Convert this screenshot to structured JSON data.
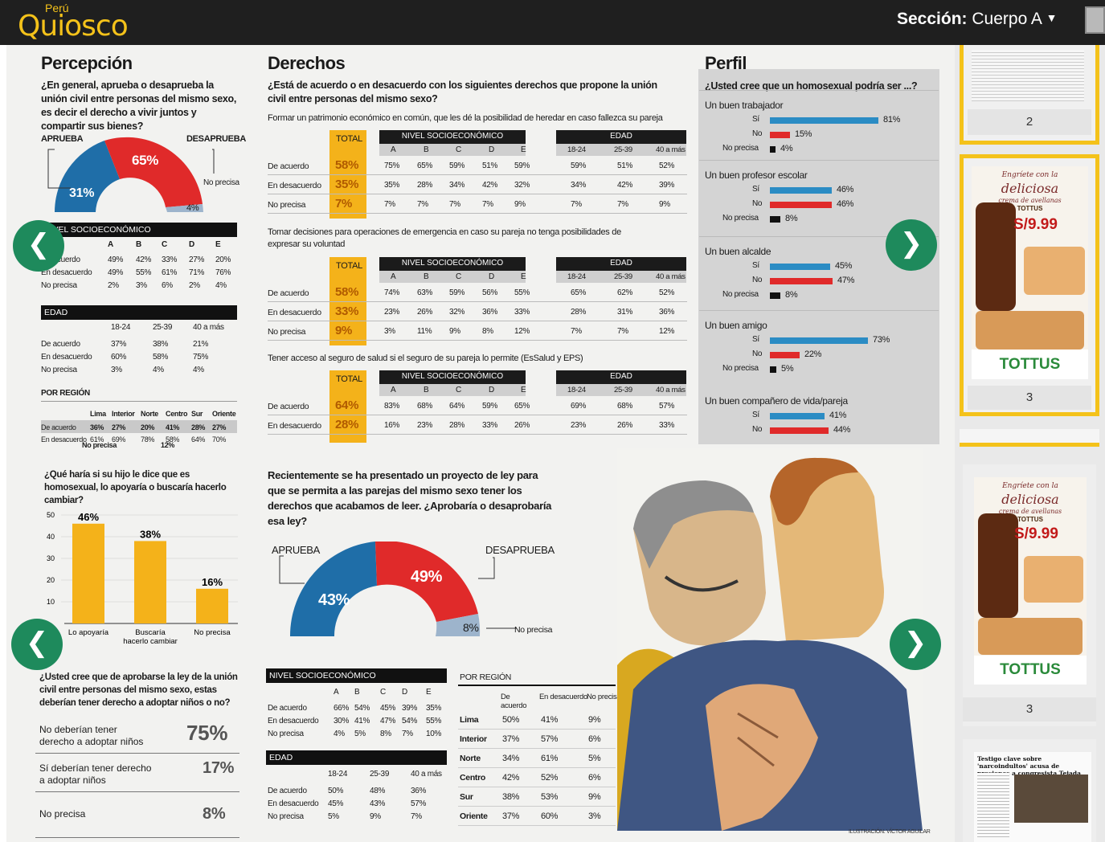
{
  "app": {
    "brand_top": "Perú",
    "brand_main": "Quiosco",
    "section_label": "Sección:",
    "section_value": "Cuerpo A"
  },
  "nav": {
    "prev": "❮",
    "next": "❯"
  },
  "percepcion": {
    "title": "Percepción",
    "question": "¿En general, aprueba o desaprueba la unión civil entre personas del mismo sexo, es decir el derecho a vivir juntos y compartir sus bienes?",
    "aprueba_label": "APRUEBA",
    "desaprueba_label": "DESAPRUEBA",
    "noprecisa_label": "No precisa",
    "aprueba_pct": "31%",
    "desaprueba_pct": "65%",
    "noprecisa_pct": "4%",
    "socio_header": "NIVEL SOCIOECONÓMICO",
    "socio_cols": [
      "A",
      "B",
      "C",
      "D",
      "E"
    ],
    "socio_rows": [
      {
        "label": "De acuerdo",
        "values": [
          "49%",
          "42%",
          "33%",
          "27%",
          "20%"
        ]
      },
      {
        "label": "En desacuerdo",
        "values": [
          "49%",
          "55%",
          "61%",
          "71%",
          "76%"
        ]
      },
      {
        "label": "No precisa",
        "values": [
          "2%",
          "3%",
          "6%",
          "2%",
          "4%"
        ]
      }
    ],
    "edad_header": "EDAD",
    "edad_cols": [
      "18-24",
      "25-39",
      "40 a más"
    ],
    "edad_rows": [
      {
        "label": "De acuerdo",
        "values": [
          "37%",
          "38%",
          "21%"
        ]
      },
      {
        "label": "En desacuerdo",
        "values": [
          "60%",
          "58%",
          "75%"
        ]
      },
      {
        "label": "No precisa",
        "values": [
          "3%",
          "4%",
          "4%"
        ]
      }
    ],
    "region_header": "POR REGIÓN",
    "region_cols": [
      "Lima",
      "Interior",
      "Norte",
      "Centro",
      "Sur",
      "Oriente"
    ],
    "region_rows": [
      {
        "label": "De acuerdo",
        "values": [
          "36%",
          "27%",
          "20%",
          "41%",
          "28%",
          "27%"
        ]
      },
      {
        "label": "En desacuerdo",
        "values": [
          "61%",
          "69%",
          "78%",
          "58%",
          "64%",
          "70%"
        ]
      }
    ],
    "region_overflow": "No precisa",
    "region_overflow_val": "12%"
  },
  "hijo": {
    "question": "¿Qué haría si su hijo le dice que es homosexual, lo apoyaría o buscaría hacerlo cambiar?",
    "chart_data": {
      "type": "bar",
      "categories": [
        "Lo apoyaría",
        "Buscaría hacerlo cambiar",
        "No precisa"
      ],
      "values": [
        46,
        38,
        16
      ],
      "value_labels": [
        "46%",
        "38%",
        "16%"
      ],
      "ylim": [
        0,
        50
      ],
      "yticks": [
        "50",
        "40",
        "30",
        "20",
        "10"
      ]
    }
  },
  "adopcion": {
    "question": "¿Usted cree que de aprobarse la ley de la unión civil entre personas del mismo sexo, estas deberían tener derecho a adoptar niños o no?",
    "rows": [
      {
        "label": "No deberían tener derecho a adoptar niños",
        "value": "75%"
      },
      {
        "label": "Sí deberían tener derecho a adoptar niños",
        "value": "17%"
      },
      {
        "label": "No precisa",
        "value": "8%"
      }
    ]
  },
  "derechos": {
    "title": "Derechos",
    "question": "¿Está de acuerdo o en desacuerdo con los siguientes derechos que propone la unión civil entre personas del mismo sexo?",
    "total_label": "TOTAL",
    "socio_header": "NIVEL SOCIOECONÓMICO",
    "edad_header": "EDAD",
    "socio_cols": [
      "A",
      "B",
      "C",
      "D",
      "E"
    ],
    "edad_cols": [
      "18-24",
      "25-39",
      "40 a más"
    ],
    "blocks": [
      {
        "title": "Formar un patrimonio económico en común, que les dé la posibilidad de heredar en caso fallezca su pareja",
        "rows": [
          {
            "label": "De acuerdo",
            "total": "58%",
            "socio": [
              "75%",
              "65%",
              "59%",
              "51%",
              "59%"
            ],
            "edad": [
              "59%",
              "51%",
              "52%"
            ]
          },
          {
            "label": "En desacuerdo",
            "total": "35%",
            "socio": [
              "35%",
              "28%",
              "34%",
              "42%",
              "32%"
            ],
            "edad": [
              "34%",
              "42%",
              "39%"
            ]
          },
          {
            "label": "No precisa",
            "total": "7%",
            "socio": [
              "7%",
              "7%",
              "7%",
              "7%",
              "9%"
            ],
            "edad": [
              "7%",
              "7%",
              "9%"
            ]
          }
        ]
      },
      {
        "title": "Tomar decisiones para operaciones de emergencia en caso su pareja no tenga posibilidades de expresar su voluntad",
        "rows": [
          {
            "label": "De acuerdo",
            "total": "58%",
            "socio": [
              "74%",
              "63%",
              "59%",
              "56%",
              "55%"
            ],
            "edad": [
              "65%",
              "62%",
              "52%"
            ]
          },
          {
            "label": "En desacuerdo",
            "total": "33%",
            "socio": [
              "23%",
              "26%",
              "32%",
              "36%",
              "33%"
            ],
            "edad": [
              "28%",
              "31%",
              "36%"
            ]
          },
          {
            "label": "No precisa",
            "total": "9%",
            "socio": [
              "3%",
              "11%",
              "9%",
              "8%",
              "12%"
            ],
            "edad": [
              "7%",
              "7%",
              "12%"
            ]
          }
        ]
      },
      {
        "title": "Tener acceso al seguro de salud si el seguro de su pareja lo permite (EsSalud y EPS)",
        "rows": [
          {
            "label": "De acuerdo",
            "total": "64%",
            "socio": [
              "83%",
              "68%",
              "64%",
              "59%",
              "65%"
            ],
            "edad": [
              "69%",
              "68%",
              "57%"
            ]
          },
          {
            "label": "En desacuerdo",
            "total": "28%",
            "socio": [
              "16%",
              "23%",
              "28%",
              "33%",
              "26%"
            ],
            "edad": [
              "23%",
              "26%",
              "33%"
            ]
          }
        ]
      }
    ]
  },
  "proyecto": {
    "question": "Recientemente se ha presentado un proyecto de ley para que se permita a las parejas del mismo sexo tener los derechos que acabamos de leer. ¿Aprobaría o desaprobaría esa ley?",
    "aprueba_label": "APRUEBA",
    "desaprueba_label": "DESAPRUEBA",
    "noprecisa_label": "No precisa",
    "aprueba_pct": "43%",
    "desaprueba_pct": "49%",
    "noprecisa_pct": "8%",
    "socio_header": "NIVEL SOCIOECONÓMICO",
    "socio_cols": [
      "A",
      "B",
      "C",
      "D",
      "E"
    ],
    "socio_rows": [
      {
        "label": "De acuerdo",
        "values": [
          "66%",
          "54%",
          "45%",
          "39%",
          "35%"
        ]
      },
      {
        "label": "En desacuerdo",
        "values": [
          "30%",
          "41%",
          "47%",
          "54%",
          "55%"
        ]
      },
      {
        "label": "No precisa",
        "values": [
          "4%",
          "5%",
          "8%",
          "7%",
          "10%"
        ]
      }
    ],
    "edad_header": "EDAD",
    "edad_cols": [
      "18-24",
      "25-39",
      "40 a más"
    ],
    "edad_rows": [
      {
        "label": "De acuerdo",
        "values": [
          "50%",
          "48%",
          "36%"
        ]
      },
      {
        "label": "En desacuerdo",
        "values": [
          "45%",
          "43%",
          "57%"
        ]
      },
      {
        "label": "No precisa",
        "values": [
          "5%",
          "9%",
          "7%"
        ]
      }
    ],
    "region_header": "POR REGIÓN",
    "region_cols": [
      "De acuerdo",
      "En desacuerdo",
      "No precisa"
    ],
    "region_rows": [
      {
        "label": "Lima",
        "values": [
          "50%",
          "41%",
          "9%"
        ]
      },
      {
        "label": "Interior",
        "values": [
          "37%",
          "57%",
          "6%"
        ]
      },
      {
        "label": "Norte",
        "values": [
          "34%",
          "61%",
          "5%"
        ]
      },
      {
        "label": "Centro",
        "values": [
          "42%",
          "52%",
          "6%"
        ]
      },
      {
        "label": "Sur",
        "values": [
          "38%",
          "53%",
          "9%"
        ]
      },
      {
        "label": "Oriente",
        "values": [
          "37%",
          "60%",
          "3%"
        ]
      }
    ],
    "credit": "ILUSTRACIÓN: VÍCTOR AGUILAR"
  },
  "perfil": {
    "title": "Perfil",
    "question": "¿Usted cree que un homosexual podría ser ...?",
    "items": [
      {
        "title": "Un buen trabajador",
        "si": 81,
        "no": 15,
        "np": 4,
        "si_label": "81%",
        "no_label": "15%",
        "np_label": "4%"
      },
      {
        "title": "Un buen profesor escolar",
        "si": 46,
        "no": 46,
        "np": 8,
        "si_label": "46%",
        "no_label": "46%",
        "np_label": "8%"
      },
      {
        "title": "Un buen alcalde",
        "si": 45,
        "no": 47,
        "np": 8,
        "si_label": "45%",
        "no_label": "47%",
        "np_label": "8%"
      },
      {
        "title": "Un buen amigo",
        "si": 73,
        "no": 22,
        "np": 5,
        "si_label": "73%",
        "no_label": "22%",
        "np_label": "5%"
      },
      {
        "title": "Un buen compañero de vida/pareja",
        "si": 41,
        "no": 44,
        "np": null,
        "si_label": "41%",
        "no_label": "44%",
        "np_label": ""
      }
    ],
    "si_word": "Sí",
    "no_word": "No",
    "np_word": "No precisa"
  },
  "thumbnails": {
    "pages": [
      "2",
      "3",
      "3"
    ],
    "ad_line1": "Engríete con la",
    "ad_line2": "deliciosa",
    "ad_line3": "crema de avellanas",
    "ad_brand": "TOTTUS",
    "ad_price": "S/9.99",
    "ad_logo": "TOTTUS",
    "news_headline": "Testigo clave sobre 'narcoindultos' acusa de presiones a congresista Tejada"
  }
}
